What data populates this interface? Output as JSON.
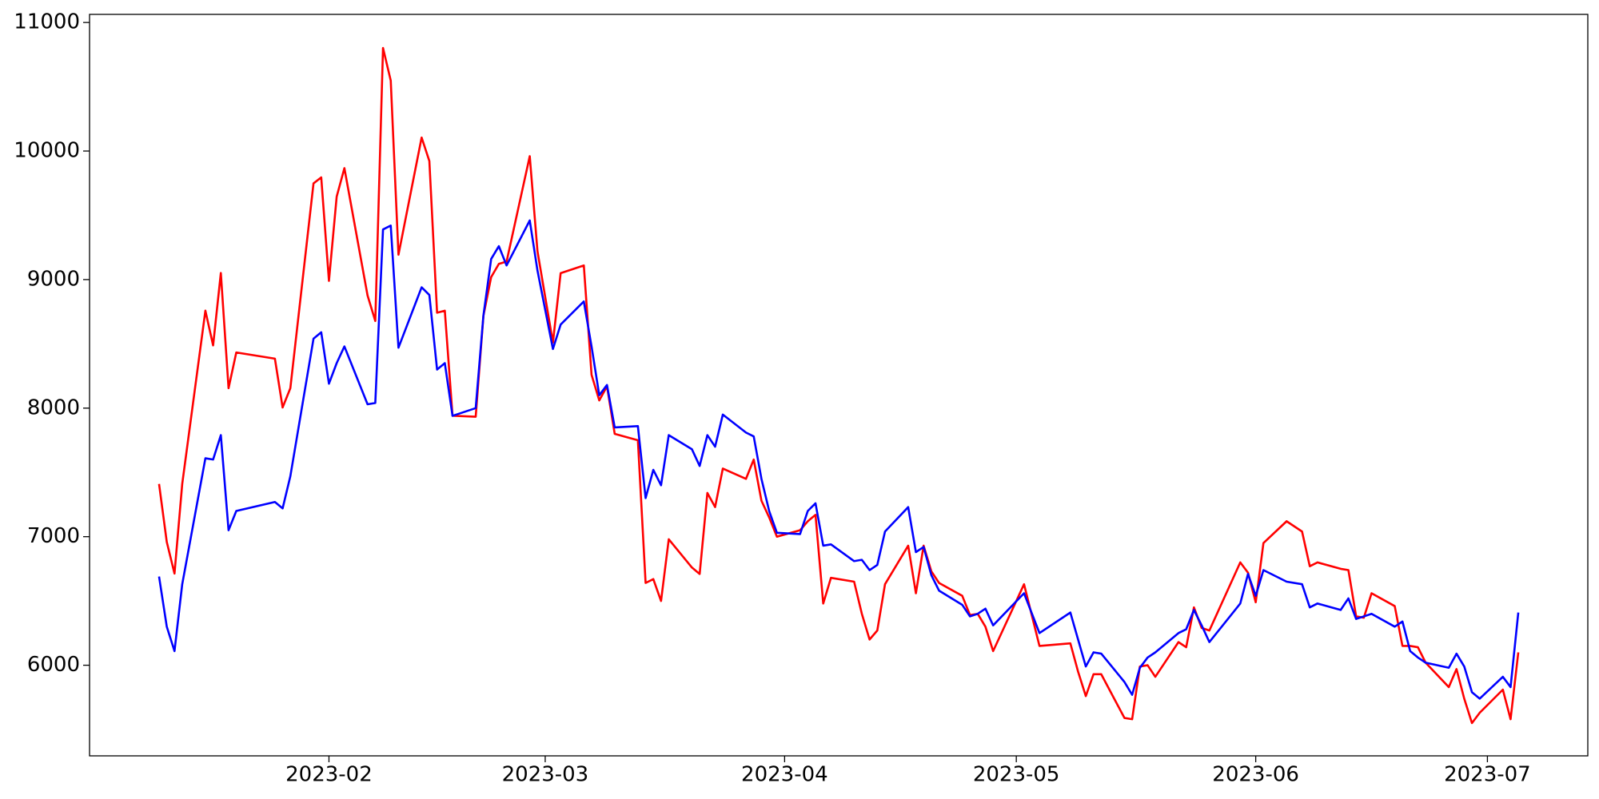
{
  "chart_data": {
    "type": "line",
    "x": [
      "2023-01-10",
      "2023-01-11",
      "2023-01-12",
      "2023-01-13",
      "2023-01-16",
      "2023-01-17",
      "2023-01-18",
      "2023-01-19",
      "2023-01-20",
      "2023-01-25",
      "2023-01-26",
      "2023-01-27",
      "2023-01-30",
      "2023-01-31",
      "2023-02-01",
      "2023-02-02",
      "2023-02-03",
      "2023-02-06",
      "2023-02-07",
      "2023-02-08",
      "2023-02-09",
      "2023-02-10",
      "2023-02-13",
      "2023-02-14",
      "2023-02-15",
      "2023-02-16",
      "2023-02-17",
      "2023-02-20",
      "2023-02-21",
      "2023-02-22",
      "2023-02-23",
      "2023-02-24",
      "2023-02-27",
      "2023-02-28",
      "2023-03-02",
      "2023-03-03",
      "2023-03-06",
      "2023-03-07",
      "2023-03-08",
      "2023-03-09",
      "2023-03-10",
      "2023-03-13",
      "2023-03-14",
      "2023-03-15",
      "2023-03-16",
      "2023-03-17",
      "2023-03-20",
      "2023-03-21",
      "2023-03-22",
      "2023-03-23",
      "2023-03-24",
      "2023-03-27",
      "2023-03-28",
      "2023-03-29",
      "2023-03-30",
      "2023-03-31",
      "2023-04-03",
      "2023-04-04",
      "2023-04-05",
      "2023-04-06",
      "2023-04-07",
      "2023-04-10",
      "2023-04-11",
      "2023-04-12",
      "2023-04-13",
      "2023-04-14",
      "2023-04-17",
      "2023-04-18",
      "2023-04-19",
      "2023-04-20",
      "2023-04-21",
      "2023-04-24",
      "2023-04-25",
      "2023-04-26",
      "2023-04-27",
      "2023-04-28",
      "2023-05-02",
      "2023-05-04",
      "2023-05-08",
      "2023-05-09",
      "2023-05-10",
      "2023-05-11",
      "2023-05-12",
      "2023-05-15",
      "2023-05-16",
      "2023-05-17",
      "2023-05-18",
      "2023-05-19",
      "2023-05-22",
      "2023-05-23",
      "2023-05-24",
      "2023-05-25",
      "2023-05-26",
      "2023-05-30",
      "2023-05-31",
      "2023-06-01",
      "2023-06-02",
      "2023-06-05",
      "2023-06-07",
      "2023-06-08",
      "2023-06-09",
      "2023-06-12",
      "2023-06-13",
      "2023-06-14",
      "2023-06-15",
      "2023-06-16",
      "2023-06-19",
      "2023-06-20",
      "2023-06-21",
      "2023-06-22",
      "2023-06-23",
      "2023-06-26",
      "2023-06-27",
      "2023-06-28",
      "2023-06-29",
      "2023-06-30",
      "2023-07-03",
      "2023-07-04",
      "2023-07-05"
    ],
    "series": [
      {
        "color": "#ff0000",
        "values": [
          7410,
          6959,
          6713,
          7410,
          8758,
          8488,
          9051,
          8155,
          8433,
          8385,
          8005,
          8155,
          9748,
          9795,
          8990,
          9645,
          9867,
          8876,
          8678,
          10802,
          10548,
          9193,
          10105,
          9922,
          8742,
          8758,
          7941,
          7933,
          8718,
          9019,
          9122,
          9140,
          9960,
          9220,
          8510,
          9050,
          9110,
          8260,
          8060,
          8170,
          7800,
          7750,
          6640,
          6670,
          6500,
          6980,
          6760,
          6710,
          7340,
          7230,
          7530,
          7450,
          7600,
          7280,
          7150,
          7000,
          7050,
          7120,
          7170,
          6480,
          6680,
          6650,
          6400,
          6200,
          6270,
          6630,
          6930,
          6560,
          6930,
          6730,
          6640,
          6540,
          6390,
          6400,
          6300,
          6110,
          6630,
          6150,
          6170,
          5950,
          5760,
          5930,
          5930,
          5590,
          5580,
          5990,
          6000,
          5910,
          6180,
          6140,
          6450,
          6290,
          6270,
          6800,
          6720,
          6490,
          6950,
          7120,
          7040,
          6770,
          6800,
          6750,
          6740,
          6380,
          6370,
          6560,
          6460,
          6150,
          6150,
          6140,
          6020,
          5830,
          5970,
          5740,
          5550,
          5630,
          5810,
          5580,
          6100
        ]
      },
      {
        "color": "#0000ff",
        "values": [
          6690,
          6300,
          6110,
          6630,
          7610,
          7600,
          7790,
          7050,
          7200,
          7270,
          7220,
          7470,
          8540,
          8590,
          8190,
          8350,
          8480,
          8030,
          8040,
          9390,
          9420,
          8470,
          8940,
          8880,
          8300,
          8350,
          7940,
          8000,
          8720,
          9160,
          9260,
          9110,
          9460,
          9070,
          8460,
          8650,
          8830,
          8480,
          8100,
          8180,
          7850,
          7860,
          7300,
          7520,
          7400,
          7790,
          7680,
          7550,
          7790,
          7700,
          7950,
          7810,
          7780,
          7450,
          7200,
          7030,
          7020,
          7200,
          7260,
          6930,
          6940,
          6810,
          6820,
          6740,
          6780,
          7040,
          7230,
          6880,
          6920,
          6700,
          6580,
          6470,
          6380,
          6400,
          6440,
          6310,
          6560,
          6250,
          6410,
          6200,
          5990,
          6100,
          6090,
          5870,
          5770,
          5980,
          6060,
          6100,
          6250,
          6280,
          6430,
          6310,
          6180,
          6480,
          6710,
          6540,
          6740,
          6650,
          6630,
          6450,
          6480,
          6430,
          6520,
          6360,
          6380,
          6400,
          6300,
          6340,
          6110,
          6060,
          6020,
          5980,
          6090,
          5990,
          5790,
          5740,
          5910,
          5830,
          6410
        ]
      }
    ],
    "xlim": [
      "2023-01-01",
      "2023-07-14"
    ],
    "xticks": [
      {
        "value": "2023-02-01",
        "label": "2023-02"
      },
      {
        "value": "2023-03-01",
        "label": "2023-03"
      },
      {
        "value": "2023-04-01",
        "label": "2023-04"
      },
      {
        "value": "2023-05-01",
        "label": "2023-05"
      },
      {
        "value": "2023-06-01",
        "label": "2023-06"
      },
      {
        "value": "2023-07-01",
        "label": "2023-07"
      }
    ],
    "ylim": [
      5295,
      11063
    ],
    "yticks": [
      6000,
      7000,
      8000,
      9000,
      10000,
      11000
    ],
    "grid": false
  }
}
